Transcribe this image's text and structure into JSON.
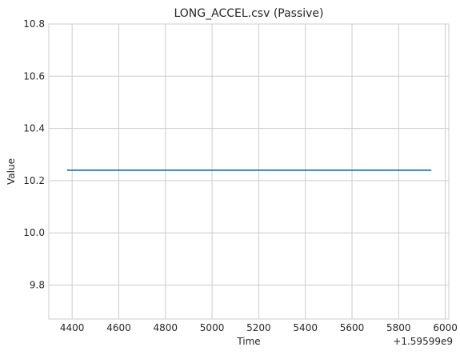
{
  "chart_data": {
    "type": "line",
    "title": "LONG_ACCEL.csv (Passive)",
    "xlabel": "Time",
    "ylabel": "Value",
    "x_offset_text": "+1.59599e9",
    "xlim": [
      4300,
      6015
    ],
    "ylim": [
      9.67,
      10.8
    ],
    "x_ticks": [
      4400,
      4600,
      4800,
      5000,
      5200,
      5400,
      5600,
      5800,
      6000
    ],
    "x_tick_labels": [
      "4400",
      "4600",
      "4800",
      "5000",
      "5200",
      "5400",
      "5600",
      "5800",
      "6000"
    ],
    "y_ticks": [
      9.8,
      10.0,
      10.2,
      10.4,
      10.6,
      10.8
    ],
    "y_tick_labels": [
      "9.8",
      "10.0",
      "10.2",
      "10.4",
      "10.6",
      "10.8"
    ],
    "grid": true,
    "series": [
      {
        "color": "#1f77b4",
        "x": [
          4378,
          5940
        ],
        "y": [
          10.24,
          10.24
        ]
      }
    ]
  }
}
